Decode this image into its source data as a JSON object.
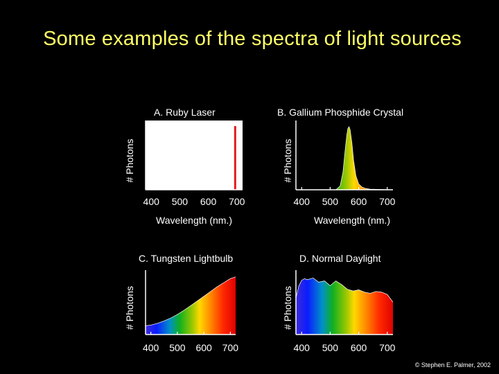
{
  "slide": {
    "title": "Some examples of the spectra of light sources",
    "copyright": "© Stephen E. Palmer, 2002"
  },
  "colors": {
    "background": "#000000",
    "title": "#ffff66",
    "text": "#ffffff",
    "axis": "#ffffff",
    "laser": "#e41a1a",
    "plot_background": "#ffffff"
  },
  "chart_data": [
    {
      "type": "line",
      "title": "A.  Ruby Laser",
      "xlabel": "Wavelength (nm.)",
      "ylabel": "# Photons",
      "xticks": [
        "400",
        "500",
        "600",
        "700"
      ],
      "xlim": [
        380,
        720
      ],
      "ylim": [
        0,
        1
      ],
      "fill": "laser",
      "series": [
        {
          "x": [
            380,
            694,
            694,
            695,
            695,
            720
          ],
          "y": [
            0,
            0,
            1,
            1,
            0,
            0
          ]
        }
      ]
    },
    {
      "type": "area",
      "title": "B. Gallium Phosphide Crystal",
      "xlabel": "Wavelength (nm.)",
      "ylabel": "# Photons",
      "xticks": [
        "400",
        "500",
        "600",
        "700"
      ],
      "xlim": [
        380,
        720
      ],
      "ylim": [
        0,
        1
      ],
      "fill": "spectrum",
      "series": [
        {
          "x": [
            380,
            520,
            535,
            545,
            552,
            558,
            562,
            566,
            570,
            576,
            582,
            590,
            600,
            612,
            625,
            640,
            720
          ],
          "y": [
            0,
            0,
            0.06,
            0.28,
            0.6,
            0.85,
            0.96,
            0.99,
            0.94,
            0.74,
            0.46,
            0.22,
            0.09,
            0.04,
            0.02,
            0.01,
            0
          ]
        }
      ]
    },
    {
      "type": "area",
      "title": "C.  Tungsten Lightbulb",
      "xlabel": "",
      "ylabel": "# Photons",
      "xticks": [
        "400",
        "500",
        "600",
        "700"
      ],
      "xlim": [
        380,
        720
      ],
      "ylim": [
        0,
        1
      ],
      "fill": "spectrum",
      "series": [
        {
          "x": [
            380,
            400,
            425,
            450,
            475,
            500,
            525,
            550,
            575,
            600,
            625,
            650,
            675,
            700,
            720
          ],
          "y": [
            0.15,
            0.16,
            0.19,
            0.23,
            0.28,
            0.34,
            0.41,
            0.49,
            0.57,
            0.65,
            0.73,
            0.81,
            0.88,
            0.95,
            0.98
          ]
        }
      ]
    },
    {
      "type": "area",
      "title": "D.  Normal Daylight",
      "xlabel": "",
      "ylabel": "# Photons",
      "xticks": [
        "400",
        "500",
        "600",
        "700"
      ],
      "xlim": [
        380,
        720
      ],
      "ylim": [
        0,
        1
      ],
      "fill": "spectrum",
      "series": [
        {
          "x": [
            380,
            390,
            400,
            410,
            420,
            440,
            460,
            480,
            500,
            520,
            540,
            560,
            580,
            600,
            620,
            640,
            660,
            680,
            700,
            720
          ],
          "y": [
            0.62,
            0.82,
            0.92,
            0.95,
            0.93,
            0.96,
            0.89,
            0.91,
            0.83,
            0.91,
            0.85,
            0.77,
            0.74,
            0.76,
            0.72,
            0.7,
            0.73,
            0.72,
            0.68,
            0.55
          ]
        }
      ]
    }
  ]
}
